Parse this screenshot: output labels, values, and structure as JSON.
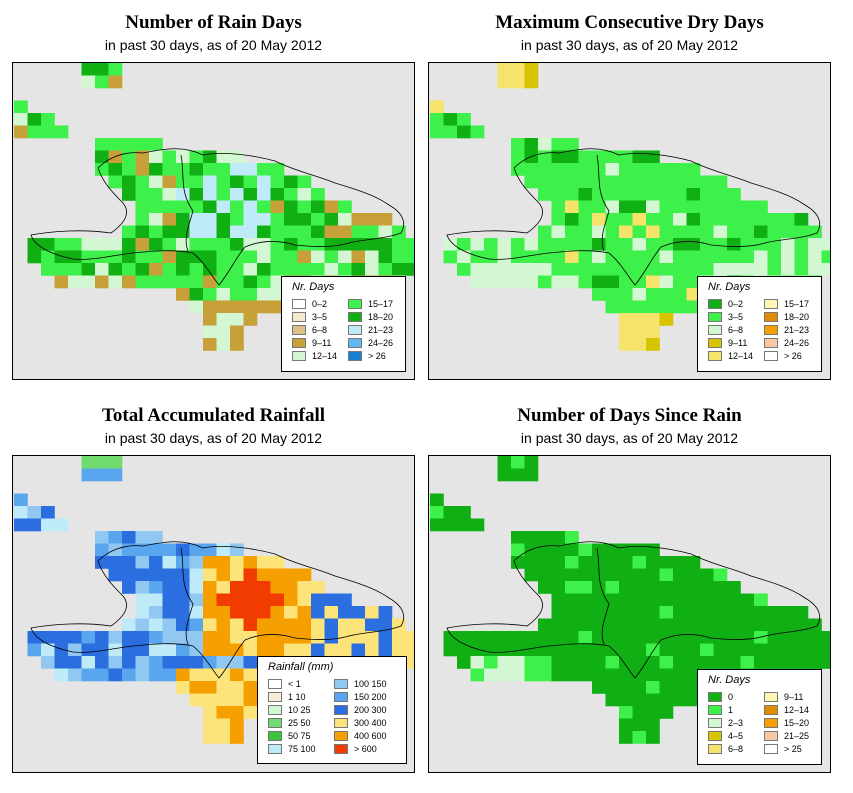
{
  "panels": [
    {
      "title": "Number of Rain Days",
      "subtitle": "in past 30 days, as of  20 May 2012",
      "legend": {
        "title": "Nr. Days",
        "items": [
          {
            "label": "0–2",
            "color": "#ffffff"
          },
          {
            "label": "3–5",
            "color": "#f5e9cf"
          },
          {
            "label": "6–8",
            "color": "#dcc08a"
          },
          {
            "label": "9–11",
            "color": "#c8a03a"
          },
          {
            "label": "12–14",
            "color": "#d2f7d2"
          },
          {
            "label": "15–17",
            "color": "#3df04a"
          },
          {
            "label": "18–20",
            "color": "#10b014"
          },
          {
            "label": "21–23",
            "color": "#bfeaf7"
          },
          {
            "label": "24–26",
            "color": "#60b8ee"
          },
          {
            "label": "> 26",
            "color": "#1a7fd0"
          }
        ]
      }
    },
    {
      "title": "Maximum Consecutive Dry Days",
      "subtitle": "in past 30 days, as of  20 May 2012",
      "legend": {
        "title": "Nr. Days",
        "items": [
          {
            "label": "0–2",
            "color": "#10b014"
          },
          {
            "label": "3–5",
            "color": "#3df04a"
          },
          {
            "label": "6–8",
            "color": "#d2f7d2"
          },
          {
            "label": "9–11",
            "color": "#d6c400"
          },
          {
            "label": "12–14",
            "color": "#f6e46a"
          },
          {
            "label": "15–17",
            "color": "#fff7b0"
          },
          {
            "label": "18–20",
            "color": "#e08c00"
          },
          {
            "label": "21–23",
            "color": "#f5a000"
          },
          {
            "label": "24–26",
            "color": "#f9c9a6"
          },
          {
            "label": "> 26",
            "color": "#ffffff"
          }
        ]
      }
    },
    {
      "title": "Total Accumulated Rainfall",
      "subtitle": "in past 30 days, as of  20 May 2012",
      "legend": {
        "title": "Rainfall (mm)",
        "items": [
          {
            "label": "< 1",
            "color": "#ffffff"
          },
          {
            "label": "1    10",
            "color": "#f7ecd6"
          },
          {
            "label": "10    25",
            "color": "#d2f7d2"
          },
          {
            "label": "25    50",
            "color": "#70dc70"
          },
          {
            "label": "50    75",
            "color": "#3dc43d"
          },
          {
            "label": "75   100",
            "color": "#bfeaf7"
          },
          {
            "label": "100   150",
            "color": "#90c8f2"
          },
          {
            "label": "150   200",
            "color": "#5aa6ee"
          },
          {
            "label": "200   300",
            "color": "#2a6ee0"
          },
          {
            "label": "300   400",
            "color": "#fde47a"
          },
          {
            "label": "400   600",
            "color": "#f5a000"
          },
          {
            "label": "> 600",
            "color": "#f03c00"
          }
        ]
      }
    },
    {
      "title": "Number of Days Since Rain",
      "subtitle": "in past 30 days, as of  20 May 2012",
      "legend": {
        "title": "Nr. Days",
        "items": [
          {
            "label": "0",
            "color": "#10b014"
          },
          {
            "label": "1",
            "color": "#3df04a"
          },
          {
            "label": "2–3",
            "color": "#d2f7d2"
          },
          {
            "label": "4–5",
            "color": "#d6c400"
          },
          {
            "label": "6–8",
            "color": "#f6e46a"
          },
          {
            "label": "9–11",
            "color": "#fff7b0"
          },
          {
            "label": "12–14",
            "color": "#e08c00"
          },
          {
            "label": "15–20",
            "color": "#f5a000"
          },
          {
            "label": "21–25",
            "color": "#f9c9a6"
          },
          {
            "label": "> 25",
            "color": "#ffffff"
          }
        ]
      }
    }
  ]
}
